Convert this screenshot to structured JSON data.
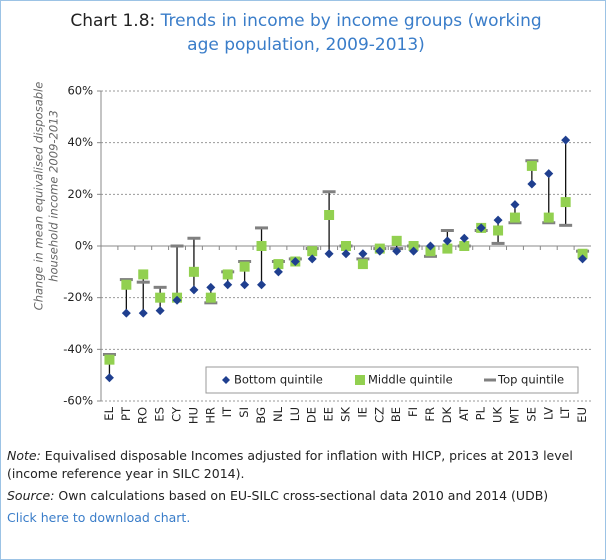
{
  "chart_data": {
    "type": "range-dot",
    "title_label": "Chart 1.8:",
    "title": "Trends in income by income groups (working age population, 2009-2013)",
    "y_label": [
      "Change in mean equivalised disposable",
      "household income 2009-2013"
    ],
    "categories": [
      "EL",
      "PT",
      "RO",
      "ES",
      "CY",
      "HU",
      "HR",
      "IT",
      "SI",
      "BG",
      "NL",
      "LU",
      "DE",
      "EE",
      "SK",
      "IE",
      "CZ",
      "BE",
      "FI",
      "FR",
      "DK",
      "AT",
      "PL",
      "UK",
      "MT",
      "SE",
      "LV",
      "LT",
      "EU"
    ],
    "series": [
      {
        "name": "Bottom quintile",
        "color": "#1f3f8f",
        "marker": "diamond",
        "values": [
          -51,
          -26,
          -26,
          -25,
          -21,
          -17,
          -16,
          -15,
          -15,
          -15,
          -10,
          -6,
          -5,
          -3,
          -3,
          -3,
          -2,
          -2,
          -2,
          0,
          2,
          3,
          7,
          10,
          16,
          24,
          28,
          41,
          -5
        ]
      },
      {
        "name": "Middle quintile",
        "color": "#92d050",
        "marker": "square",
        "values": [
          -44,
          -15,
          -11,
          -20,
          -20,
          -10,
          -20,
          -11,
          -8,
          0,
          -7,
          -6,
          -2,
          12,
          0,
          -7,
          -1,
          2,
          0,
          -2,
          -1,
          0,
          7,
          6,
          11,
          31,
          11,
          17,
          -3
        ]
      },
      {
        "name": "Top quintile",
        "color": "#808080",
        "marker": "dash",
        "values": [
          -42,
          -13,
          -14,
          -16,
          0,
          3,
          -22,
          -10,
          -6,
          7,
          -6,
          -5,
          -1,
          21,
          0,
          -5,
          -1,
          -1,
          0,
          -4,
          6,
          0,
          6,
          1,
          9,
          33,
          9,
          8,
          -2
        ]
      }
    ],
    "ylim": [
      -60,
      60
    ],
    "yticks": [
      {
        "value": -60,
        "label": "-60%"
      },
      {
        "value": -40,
        "label": "-40%"
      },
      {
        "value": -20,
        "label": "-20%"
      },
      {
        "value": 0,
        "label": "0%"
      },
      {
        "value": 20,
        "label": "20%"
      },
      {
        "value": 40,
        "label": "40%"
      },
      {
        "value": 60,
        "label": "60%"
      }
    ],
    "grid": true,
    "legend": "lower right"
  },
  "notes": {
    "note_label": "Note:",
    "note": "Equivalised disposable Incomes adjusted for inflation with HICP, prices at 2013 level (income reference year in SILC 2014).",
    "source_label": "Source:",
    "source": "Own calculations based on EU-SILC cross-sectional data 2010 and 2014 (UDB)",
    "link": "Click here to download chart."
  }
}
